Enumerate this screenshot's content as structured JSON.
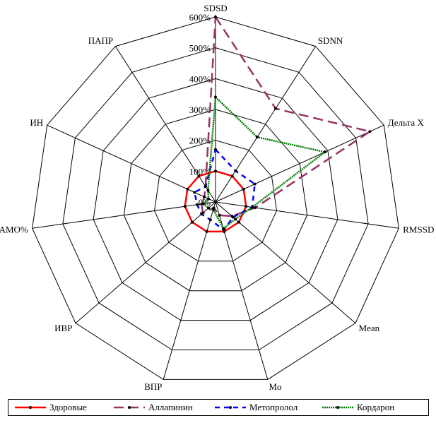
{
  "chart_data": {
    "type": "radar",
    "title": "",
    "axes": [
      "SDSD",
      "SDNN",
      "Дельта Х",
      "RMSSD",
      "Mean",
      "Mo",
      "ВПР",
      "ИВР",
      "AMO%",
      "ИН",
      "ПАПР"
    ],
    "ticks": [
      "0%",
      "100%",
      "200%",
      "300%",
      "400%",
      "500%",
      "600%"
    ],
    "rlim": [
      0,
      600
    ],
    "grid": true,
    "legend_position": "bottom",
    "series": [
      {
        "name": "Здоровые",
        "color": "#ff0000",
        "line_style": "solid",
        "values": [
          100,
          100,
          100,
          100,
          100,
          100,
          100,
          100,
          100,
          100,
          100
        ]
      },
      {
        "name": "Аллапинин",
        "color": "#993366",
        "line_style": "long-dash",
        "values": [
          600,
          360,
          550,
          130,
          70,
          45,
          20,
          55,
          45,
          40,
          60
        ]
      },
      {
        "name": "Метопролол",
        "color": "#0000ff",
        "line_style": "dash",
        "values": [
          170,
          120,
          140,
          120,
          75,
          95,
          60,
          60,
          60,
          75,
          60
        ]
      },
      {
        "name": "Кордарон",
        "color": "#008000",
        "line_style": "dotted-double",
        "values": [
          340,
          250,
          390,
          120,
          85,
          90,
          25,
          30,
          40,
          25,
          45
        ]
      }
    ]
  }
}
